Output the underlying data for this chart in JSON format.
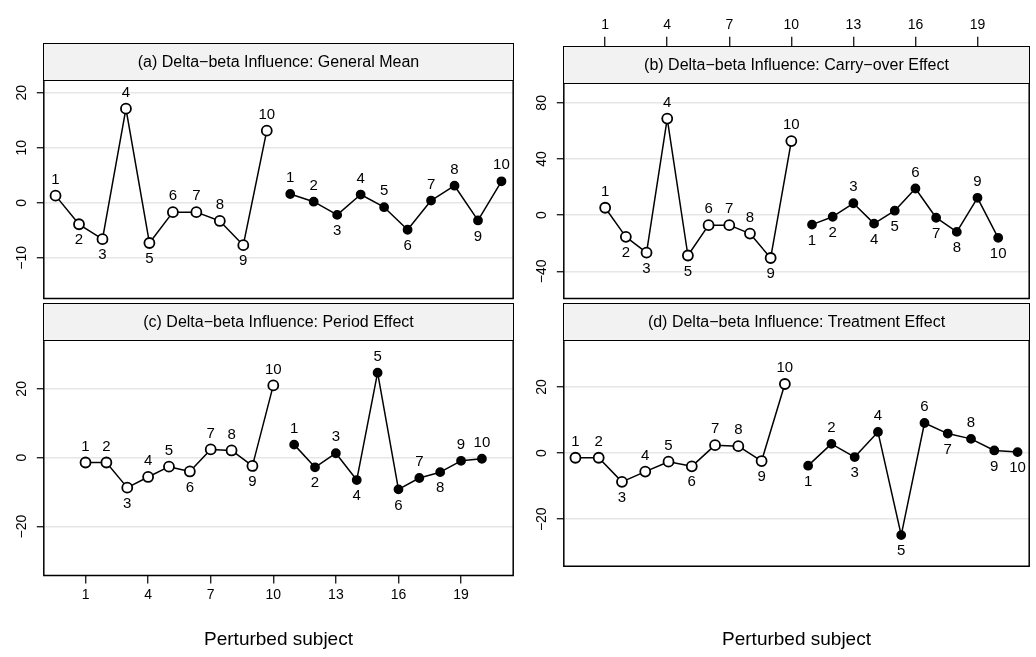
{
  "chart_data": [
    {
      "type": "line",
      "title": "(a) Delta−beta Influence: General Mean",
      "categories": [
        null,
        null,
        null,
        null,
        null,
        null,
        null,
        null,
        null,
        null,
        null,
        null,
        null,
        null,
        null,
        null,
        null,
        null,
        null,
        null
      ],
      "ylim": [
        -17.4,
        22.3
      ],
      "yticks": [
        {
          "value": -10,
          "label": "−10"
        },
        0,
        10,
        20
      ],
      "grid": "y",
      "marker": "circle",
      "tick_labels": "y",
      "series": [
        {
          "color": "#000000",
          "values": [
            1.3,
            -3.9,
            -6.6,
            17.1,
            -7.3,
            -1.7,
            -1.7,
            -3.3,
            -7.7,
            13.1,
            null,
            null,
            null,
            null,
            null,
            null,
            null,
            null,
            null,
            null
          ]
        },
        {
          "color": "#000000",
          "values": [
            null,
            null,
            null,
            null,
            null,
            null,
            null,
            null,
            null,
            null,
            1.6,
            0.2,
            -2.2,
            1.5,
            -0.8,
            -4.9,
            0.4,
            3.1,
            -3.2,
            3.9
          ]
        }
      ],
      "annotations": [
        "1",
        "2",
        "3",
        "4",
        "5",
        "6",
        "7",
        "8",
        "9",
        "10",
        "1",
        "2",
        "3",
        "4",
        "5",
        "6",
        "7",
        "8",
        "9",
        "10"
      ]
    },
    {
      "type": "line",
      "title": "(b) Delta−beta Influence: Carry−over Effect",
      "xlim": [
        -1,
        21.5
      ],
      "xticks": [
        1,
        4,
        7,
        10,
        13,
        16,
        19
      ],
      "ylim": [
        -59.4,
        94.3
      ],
      "yticks": [
        {
          "value": -40,
          "label": "−40"
        },
        0,
        40,
        80
      ],
      "grid": "y",
      "marker": "circle",
      "series": [
        {
          "color": "#000000",
          "x": [
            1,
            2,
            3,
            4,
            5,
            6,
            7,
            8,
            9,
            10
          ],
          "values": [
            5.3,
            -15.4,
            -26.6,
            68.8,
            -28.7,
            -7.1,
            -7.1,
            -13.1,
            -30.5,
            52.8
          ]
        },
        {
          "color": "#000000",
          "x": [
            11,
            12,
            13,
            14,
            15,
            16,
            17,
            18,
            19,
            20
          ],
          "values": [
            -6.7,
            -1.1,
            8.5,
            -6.0,
            3.2,
            19.0,
            -1.8,
            -11.9,
            12.4,
            -16.1
          ]
        }
      ],
      "annotations": [
        {
          "text": "1",
          "x": 1,
          "y": 5.3
        },
        {
          "text": "2",
          "x": 2,
          "y": -15.4
        },
        {
          "text": "3",
          "x": 3,
          "y": -26.6
        },
        {
          "text": "4",
          "x": 4,
          "y": 68.8
        },
        {
          "text": "5",
          "x": 5,
          "y": -28.7
        },
        {
          "text": "6",
          "x": 6,
          "y": -7.1
        },
        {
          "text": "7",
          "x": 7,
          "y": -7.1
        },
        {
          "text": "8",
          "x": 8,
          "y": -13.1
        },
        {
          "text": "9",
          "x": 9,
          "y": -30.5
        },
        {
          "text": "10",
          "x": 10,
          "y": 52.8
        },
        {
          "text": "1",
          "x": 11,
          "y": -6.7
        },
        {
          "text": "2",
          "x": 12,
          "y": -1.1
        },
        {
          "text": "3",
          "x": 13,
          "y": 8.5
        },
        {
          "text": "4",
          "x": 14,
          "y": -6.0
        },
        {
          "text": "5",
          "x": 15,
          "y": 3.2
        },
        {
          "text": "6",
          "x": 16,
          "y": 19.0
        },
        {
          "text": "7",
          "x": 17,
          "y": -1.8
        },
        {
          "text": "8",
          "x": 18,
          "y": -11.9
        },
        {
          "text": "9",
          "x": 19,
          "y": 12.4
        },
        {
          "text": "10",
          "x": 20,
          "y": -16.1
        }
      ]
    },
    {
      "type": "line",
      "title": "(c) Delta−beta Influence: Period Effect",
      "xlabel": "Perturbed subject",
      "xlim": [
        -1,
        21.5
      ],
      "xticks": [
        1,
        4,
        7,
        10,
        13,
        16,
        19
      ],
      "ylim": [
        -34.2,
        34.2
      ],
      "yticks": [
        {
          "value": -20,
          "label": "−20"
        },
        0,
        20
      ],
      "grid": "y",
      "marker": "circle",
      "series": [
        {
          "color": "#000000",
          "x": [
            1,
            2,
            3,
            4,
            5,
            6,
            7,
            8,
            9,
            10
          ],
          "values": [
            -1.4,
            -1.4,
            -8.7,
            -5.6,
            -2.6,
            -4.0,
            2.4,
            2.1,
            -2.4,
            21.0
          ]
        },
        {
          "color": "#000000",
          "x": [
            11,
            12,
            13,
            14,
            15,
            16,
            17,
            18,
            19,
            20
          ],
          "values": [
            3.8,
            -2.8,
            1.3,
            -6.5,
            24.7,
            -9.2,
            -5.9,
            -4.2,
            -0.9,
            -0.3
          ]
        }
      ],
      "annotations": [
        {
          "text": "1",
          "x": 1,
          "y": -1.4
        },
        {
          "text": "2",
          "x": 2,
          "y": -1.4
        },
        {
          "text": "3",
          "x": 3,
          "y": -8.7
        },
        {
          "text": "4",
          "x": 4,
          "y": -5.6
        },
        {
          "text": "5",
          "x": 5,
          "y": -2.6
        },
        {
          "text": "6",
          "x": 6,
          "y": -4.0
        },
        {
          "text": "7",
          "x": 7,
          "y": 2.4
        },
        {
          "text": "8",
          "x": 8,
          "y": 2.1
        },
        {
          "text": "9",
          "x": 9,
          "y": -2.4
        },
        {
          "text": "10",
          "x": 10,
          "y": 21.0
        },
        {
          "text": "1",
          "x": 11,
          "y": 3.8
        },
        {
          "text": "2",
          "x": 12,
          "y": -2.8
        },
        {
          "text": "3",
          "x": 13,
          "y": 1.3
        },
        {
          "text": "4",
          "x": 14,
          "y": -6.5
        },
        {
          "text": "5",
          "x": 15,
          "y": 24.7
        },
        {
          "text": "6",
          "x": 16,
          "y": -9.2
        },
        {
          "text": "7",
          "x": 17,
          "y": -5.9
        },
        {
          "text": "8",
          "x": 18,
          "y": -4.2
        },
        {
          "text": "9",
          "x": 19,
          "y": -0.9
        },
        {
          "text": "10",
          "x": 20,
          "y": -0.3
        }
      ]
    },
    {
      "type": "line",
      "title": "(d) Delta−beta Influence: Treatment Effect",
      "xlabel": "Perturbed subject",
      "categories": [
        null,
        null,
        null,
        null,
        null,
        null,
        null,
        null,
        null,
        null,
        null,
        null,
        null,
        null,
        null,
        null,
        null,
        null,
        null,
        null
      ],
      "ylim": [
        -34.2,
        34.2
      ],
      "yticks": [
        {
          "value": -20,
          "label": "−20"
        },
        0,
        20
      ],
      "grid": "y",
      "marker": "circle",
      "tick_labels": "y",
      "series": [
        {
          "color": "#000000",
          "values": [
            -1.4,
            -1.4,
            -8.7,
            -5.6,
            -2.6,
            -4.0,
            2.4,
            2.1,
            -2.4,
            20.9,
            null,
            null,
            null,
            null,
            null,
            null,
            null,
            null,
            null,
            null
          ]
        },
        {
          "color": "#000000",
          "values": [
            null,
            null,
            null,
            null,
            null,
            null,
            null,
            null,
            null,
            null,
            -3.8,
            2.8,
            -1.2,
            6.4,
            -24.8,
            9.1,
            5.9,
            4.3,
            0.8,
            0.3
          ]
        }
      ],
      "annotations": [
        "1",
        "2",
        "3",
        "4",
        "5",
        "6",
        "7",
        "8",
        "9",
        "10",
        "1",
        "2",
        "3",
        "4",
        "5",
        "6",
        "7",
        "8",
        "9",
        "10"
      ]
    }
  ]
}
